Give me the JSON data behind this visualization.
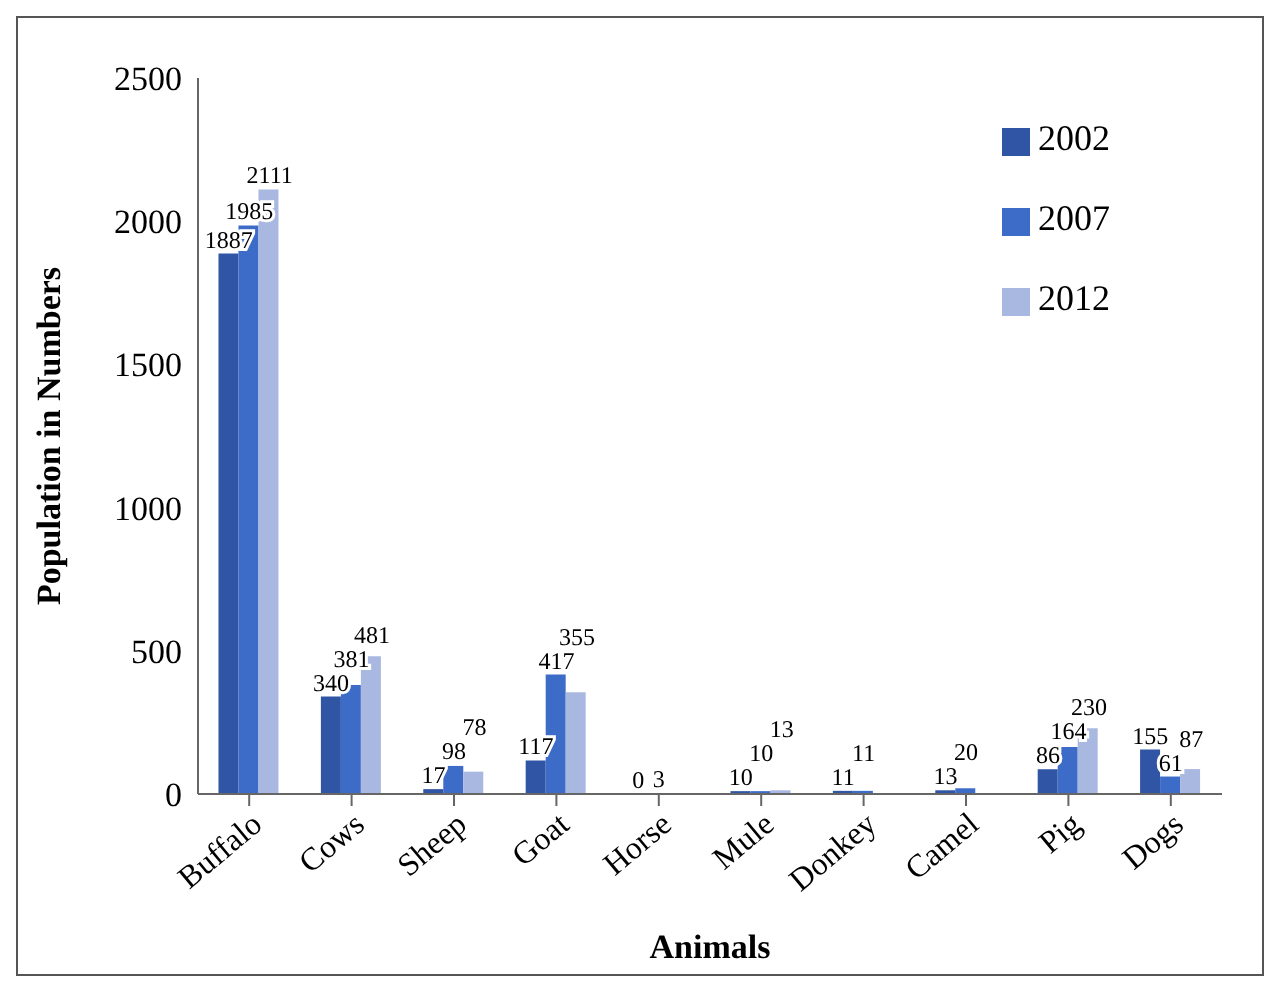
{
  "chart_data": {
    "type": "bar",
    "xlabel": "Animals",
    "ylabel": "Population in Numbers",
    "categories": [
      "Buffalo",
      "Cows",
      "Sheep",
      "Goat",
      "Horse",
      "Mule",
      "Donkey",
      "Camel",
      "Pig",
      "Dogs"
    ],
    "series": [
      {
        "name": "2002",
        "color": "#2f55a4",
        "values": [
          1887,
          340,
          17,
          117,
          0,
          10,
          11,
          13,
          86,
          155
        ]
      },
      {
        "name": "2007",
        "color": "#3d6cc8",
        "values": [
          1985,
          381,
          98,
          417,
          3,
          10,
          11,
          20,
          164,
          61
        ]
      },
      {
        "name": "2012",
        "color": "#a9b8e0",
        "values": [
          2111,
          481,
          78,
          355,
          null,
          13,
          null,
          null,
          230,
          87
        ]
      }
    ],
    "ylim": [
      0,
      2500
    ],
    "yticks": [
      0,
      500,
      1000,
      1500,
      2000,
      2500
    ],
    "data_labels": true,
    "legend": "top right",
    "grid": false
  }
}
